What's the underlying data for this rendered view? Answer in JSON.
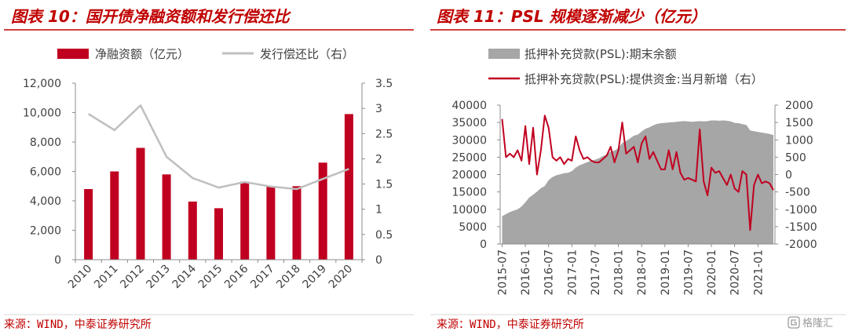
{
  "colors": {
    "accent": "#C00000"
  },
  "watermark": {
    "text": "格隆汇",
    "icon": "gelonghui-logo-icon"
  },
  "chart_data": [
    {
      "type": "bar",
      "title": "图表 10：国开债净融资额和发行偿还比",
      "categories": [
        "2010",
        "2011",
        "2012",
        "2013",
        "2014",
        "2015",
        "2016",
        "2017",
        "2018",
        "2019",
        "2020"
      ],
      "series": [
        {
          "name": "净融资额（亿元）",
          "type": "bar",
          "axis": "left",
          "color": "#C00020",
          "values": [
            4800,
            6000,
            7600,
            5800,
            3950,
            3500,
            5300,
            5000,
            5000,
            6600,
            9900
          ]
        },
        {
          "name": "发行偿还比（右）",
          "type": "line",
          "axis": "right",
          "color": "#BFBFBF",
          "values": [
            2.89,
            2.57,
            3.06,
            2.04,
            1.62,
            1.43,
            1.54,
            1.45,
            1.4,
            1.6,
            1.8
          ]
        }
      ],
      "xlabel": "",
      "ylabel": "",
      "ylim": [
        0,
        12000
      ],
      "yticks": [
        0,
        2000,
        4000,
        6000,
        8000,
        10000,
        12000
      ],
      "ytick_labels": [
        "0",
        "2,000",
        "4,000",
        "6,000",
        "8,000",
        "10,000",
        "12,000"
      ],
      "y2lim": [
        0,
        3.5
      ],
      "y2ticks": [
        0,
        0.5,
        1,
        1.5,
        2,
        2.5,
        3,
        3.5
      ],
      "y2tick_labels": [
        "0",
        "0.5",
        "1",
        "1.5",
        "2",
        "2.5",
        "3",
        "3.5"
      ],
      "grid": false,
      "legend": "top",
      "source": "来源：WIND，中泰证券研究所"
    },
    {
      "type": "area",
      "title": "图表 11：PSL 规模逐渐减少（亿元）",
      "x": [
        "2015-07",
        "2015-08",
        "2015-09",
        "2015-10",
        "2015-11",
        "2015-12",
        "2016-01",
        "2016-02",
        "2016-03",
        "2016-04",
        "2016-05",
        "2016-06",
        "2016-07",
        "2016-08",
        "2016-09",
        "2016-10",
        "2016-11",
        "2016-12",
        "2017-01",
        "2017-02",
        "2017-03",
        "2017-04",
        "2017-05",
        "2017-06",
        "2017-07",
        "2017-08",
        "2017-09",
        "2017-10",
        "2017-11",
        "2017-12",
        "2018-01",
        "2018-02",
        "2018-03",
        "2018-04",
        "2018-05",
        "2018-06",
        "2018-07",
        "2018-08",
        "2018-09",
        "2018-10",
        "2018-11",
        "2018-12",
        "2019-01",
        "2019-02",
        "2019-03",
        "2019-04",
        "2019-05",
        "2019-06",
        "2019-07",
        "2019-08",
        "2019-09",
        "2019-10",
        "2019-11",
        "2019-12",
        "2020-01",
        "2020-02",
        "2020-03",
        "2020-04",
        "2020-05",
        "2020-06",
        "2020-07",
        "2020-08",
        "2020-09",
        "2020-10",
        "2020-11",
        "2020-12",
        "2021-01",
        "2021-02",
        "2021-03",
        "2021-04",
        "2021-05"
      ],
      "xtick_labels": [
        "2015-07",
        "2016-01",
        "2016-07",
        "2017-01",
        "2017-07",
        "2018-01",
        "2018-07",
        "2019-01",
        "2019-07",
        "2020-01",
        "2020-07",
        "2021-01"
      ],
      "series": [
        {
          "name": "抵押补充贷款(PSL):期末余额",
          "type": "area",
          "axis": "left",
          "color": "#A6A6A6",
          "values": [
            8000,
            8600,
            9200,
            9600,
            10000,
            10800,
            12000,
            13400,
            14200,
            15100,
            16100,
            16700,
            18400,
            19300,
            19800,
            20100,
            20400,
            20500,
            21000,
            22000,
            22700,
            23100,
            23600,
            24000,
            24300,
            24700,
            25300,
            25800,
            26600,
            26900,
            27600,
            29100,
            29700,
            30400,
            31200,
            31500,
            32400,
            33200,
            33600,
            34200,
            34600,
            34800,
            34900,
            35000,
            35100,
            35200,
            35300,
            35400,
            35300,
            35200,
            35300,
            35400,
            35300,
            35400,
            35600,
            35600,
            35500,
            35600,
            35500,
            35300,
            34900,
            34800,
            34500,
            34300,
            32700,
            32500,
            32300,
            32100,
            31900,
            31700,
            31400
          ]
        },
        {
          "name": "抵押补充贷款(PSL):提供资金:当月新增（右）",
          "type": "line",
          "axis": "right",
          "color": "#C00020",
          "values": [
            1600,
            500,
            600,
            500,
            700,
            400,
            1400,
            300,
            1350,
            0,
            700,
            1700,
            1350,
            500,
            400,
            500,
            300,
            450,
            400,
            1100,
            700,
            450,
            500,
            400,
            350,
            350,
            450,
            550,
            800,
            350,
            700,
            1500,
            600,
            700,
            800,
            350,
            900,
            1100,
            450,
            650,
            400,
            150,
            150,
            700,
            150,
            650,
            50,
            -150,
            -100,
            -150,
            -200,
            1300,
            -200,
            -600,
            200,
            50,
            100,
            -100,
            -300,
            0,
            -400,
            -500,
            100,
            0,
            -1600,
            -300,
            0,
            -250,
            -200,
            -250,
            -450
          ]
        }
      ],
      "xlabel": "",
      "ylabel": "",
      "ylim": [
        0,
        40000
      ],
      "yticks": [
        0,
        5000,
        10000,
        15000,
        20000,
        25000,
        30000,
        35000,
        40000
      ],
      "ytick_labels": [
        "0",
        "5000",
        "10000",
        "15000",
        "20000",
        "25000",
        "30000",
        "35000",
        "40000"
      ],
      "y2lim": [
        -2000,
        2000
      ],
      "y2ticks": [
        -2000,
        -1500,
        -1000,
        -500,
        0,
        500,
        1000,
        1500,
        2000
      ],
      "y2tick_labels": [
        "-2000",
        "-1500",
        "-1000",
        "-500",
        "0",
        "500",
        "1000",
        "1500",
        "2000"
      ],
      "grid": false,
      "legend": "top-left",
      "source": "来源：WIND，中泰证券研究所"
    }
  ]
}
